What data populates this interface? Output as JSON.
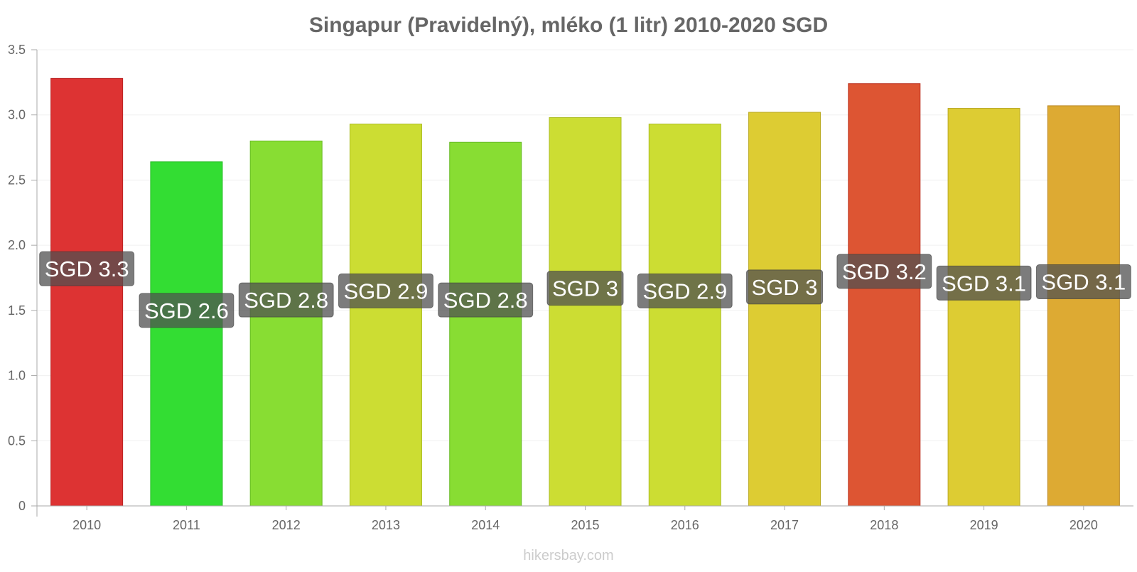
{
  "chart_data": {
    "type": "bar",
    "title": "Singapur (Pravidelný), mléko (1 litr) 2010-2020 SGD",
    "xlabel": "",
    "ylabel": "",
    "ylim": [
      0,
      3.5
    ],
    "yticks": [
      0,
      0.5,
      1.0,
      1.5,
      2.0,
      2.5,
      3.0,
      3.5
    ],
    "ytick_labels": [
      "0",
      "0.5",
      "1.0",
      "1.5",
      "2.0",
      "2.5",
      "3.0",
      "3.5"
    ],
    "grid": true,
    "categories": [
      "2010",
      "2011",
      "2012",
      "2013",
      "2014",
      "2015",
      "2016",
      "2017",
      "2018",
      "2019",
      "2020"
    ],
    "values": [
      3.28,
      2.64,
      2.8,
      2.93,
      2.79,
      2.98,
      2.93,
      3.02,
      3.24,
      3.05,
      3.07
    ],
    "data_labels": [
      "SGD 3.3",
      "SGD 2.6",
      "SGD 2.8",
      "SGD 2.9",
      "SGD 2.8",
      "SGD 3",
      "SGD 2.9",
      "SGD 3",
      "SGD 3.2",
      "SGD 3.1",
      "SGD 3.1"
    ],
    "label_positions": [
      1.82,
      1.5,
      1.58,
      1.65,
      1.58,
      1.67,
      1.65,
      1.68,
      1.8,
      1.71,
      1.72
    ],
    "colors": [
      "#dd3333",
      "#33dd33",
      "#88dd33",
      "#ccdd33",
      "#88dd33",
      "#ccdd33",
      "#ccdd33",
      "#ddcc33",
      "#dd5533",
      "#ddcc33",
      "#ddaa33"
    ],
    "border_colors": [
      "#bb2222",
      "#22bb22",
      "#66bb22",
      "#aabb22",
      "#66bb22",
      "#aabb22",
      "#aabb22",
      "#bbaa22",
      "#bb3322",
      "#bbaa22",
      "#bb8822"
    ]
  },
  "watermark": "hikersbay.com",
  "colors": {
    "title": "#666666",
    "axis_text": "#666666",
    "grid": "#f0f0f0",
    "axis": "#aaaaaa",
    "label_bg": "#505050",
    "label_text": "#ffffff",
    "watermark": "#cccccc"
  }
}
